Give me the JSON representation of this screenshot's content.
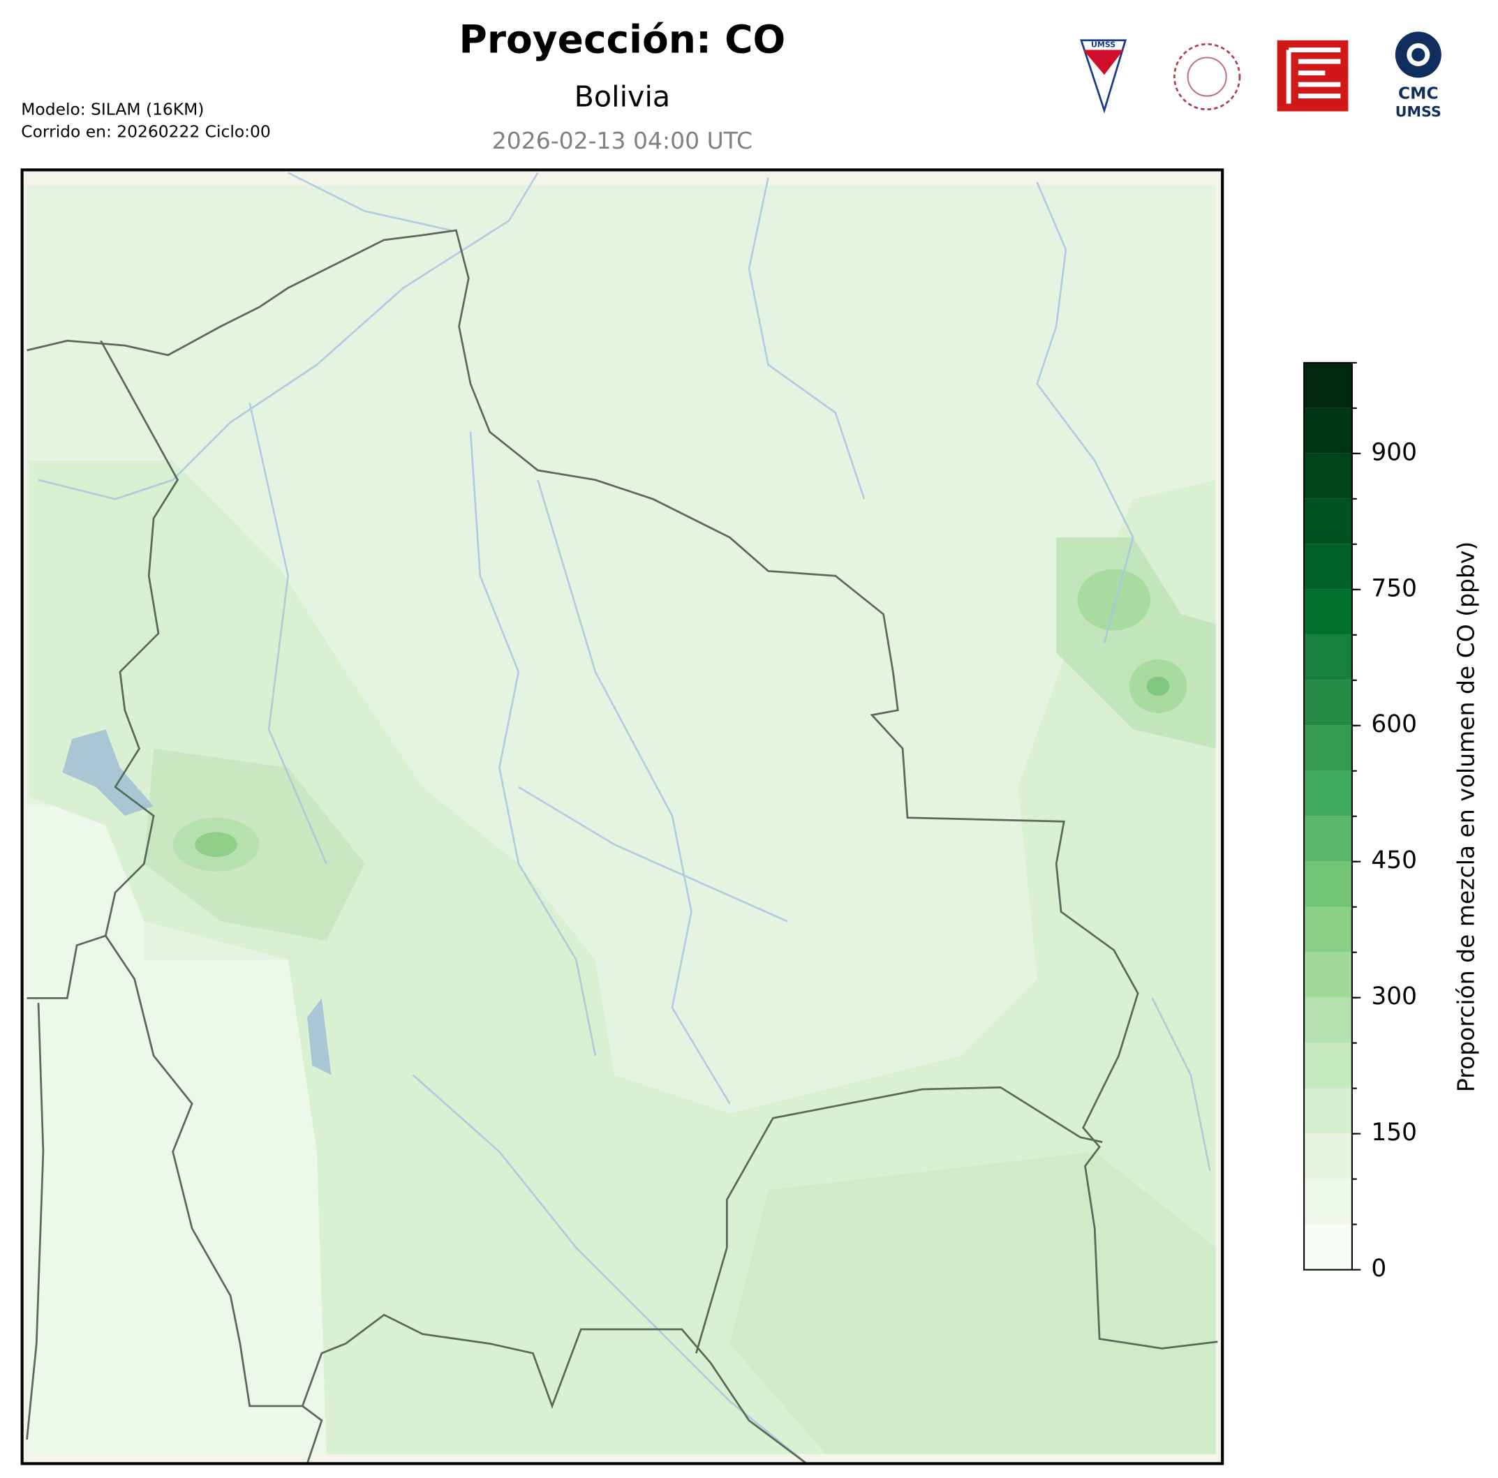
{
  "header": {
    "title": "Proyección: CO",
    "region": "Bolivia",
    "timestamp": "2026-02-13 04:00 UTC",
    "model": "Modelo: SILAM (16KM)",
    "run": "Corrido en: 20260222 Ciclo:00"
  },
  "logos": {
    "umss": "UMSS",
    "cmc": "CMC",
    "cmc_sub": "UMSS"
  },
  "chart_data": {
    "type": "colorbar",
    "label": "Proporción de mezcla en volumen de CO (ppbv)",
    "bins": [
      0,
      50,
      100,
      150,
      200,
      250,
      300,
      350,
      400,
      450,
      500,
      550,
      600,
      650,
      700,
      750,
      800,
      850,
      900,
      950,
      1000
    ],
    "colors": [
      "#f7fcf5",
      "#eef8ea",
      "#e5f5e0",
      "#d7efd1",
      "#c7e9c0",
      "#b4e1ad",
      "#a1d99b",
      "#8ace88",
      "#74c476",
      "#5bb86a",
      "#41ab5d",
      "#329b51",
      "#238b45",
      "#17803c",
      "#00712f",
      "#006227",
      "#005221",
      "#00441b",
      "#003516",
      "#00280f"
    ],
    "ylim": [
      0,
      1000
    ],
    "yticks": [
      0,
      150,
      300,
      450,
      600,
      750,
      900
    ]
  }
}
